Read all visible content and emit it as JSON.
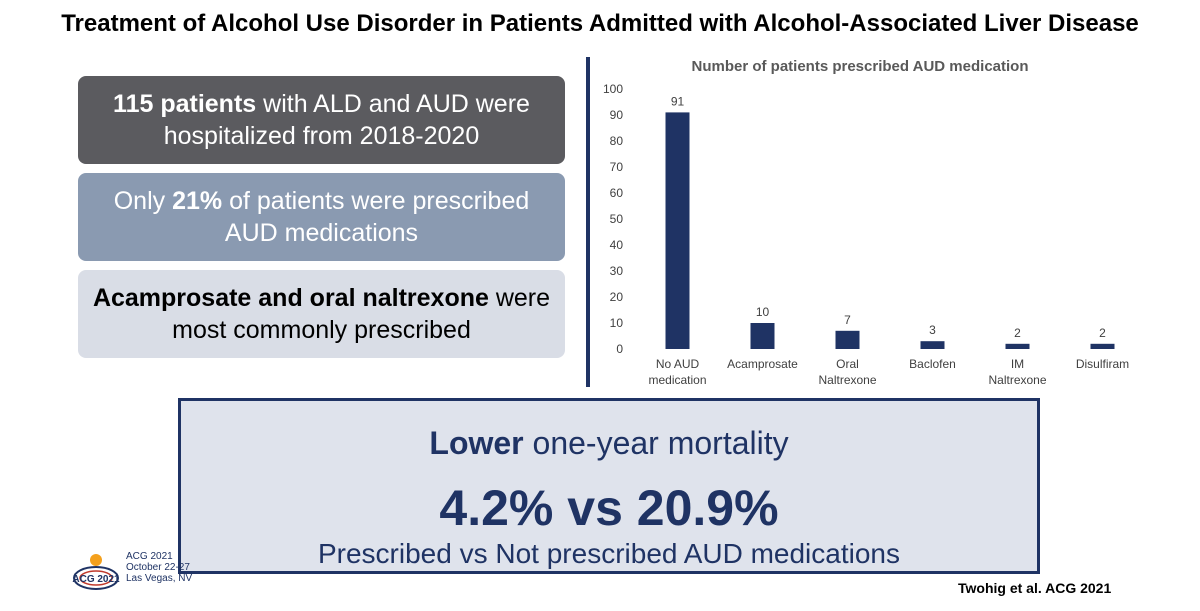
{
  "title": "Treatment of Alcohol Use Disorder in Patients Admitted with Alcohol-Associated Liver Disease",
  "boxes": [
    {
      "bold": "115 patients",
      "rest": " with ALD and AUD were hospitalized from 2018-2020"
    },
    {
      "pre": "Only ",
      "bold": "21%",
      "rest": " of patients were prescribed AUD medications"
    },
    {
      "bold": "Acamprosate and oral naltrexone",
      "rest": " were most commonly prescribed"
    }
  ],
  "mortality": {
    "bold": "Lower",
    "rest": " one-year mortality",
    "stat": "4.2% vs 20.9%",
    "subtitle": "Prescribed vs Not prescribed AUD medications"
  },
  "conference": {
    "logo_text": "ACG 2021",
    "line1": "ACG 2021",
    "line2": "October 22-27",
    "line3": "Las Vegas, NV"
  },
  "citation": "Twohig et al. ACG 2021",
  "colors": {
    "bar": "#1f3364",
    "box1": "#5b5b5f",
    "box2": "#8a9ab1",
    "box3": "#d9dde6",
    "accent": "#1f3364"
  },
  "chart_data": {
    "type": "bar",
    "title": "Number of patients prescribed AUD medication",
    "categories": [
      [
        "No AUD",
        "medication"
      ],
      [
        "Acamprosate"
      ],
      [
        "Oral",
        "Naltrexone"
      ],
      [
        "Baclofen"
      ],
      [
        "IM",
        "Naltrexone"
      ],
      [
        "Disulfiram"
      ]
    ],
    "values": [
      91,
      10,
      7,
      3,
      2,
      2
    ],
    "ylim": [
      0,
      100
    ],
    "yticks": [
      0,
      10,
      20,
      30,
      40,
      50,
      60,
      70,
      80,
      90,
      100
    ],
    "data_labels": true,
    "grid": false,
    "legend": "none"
  }
}
